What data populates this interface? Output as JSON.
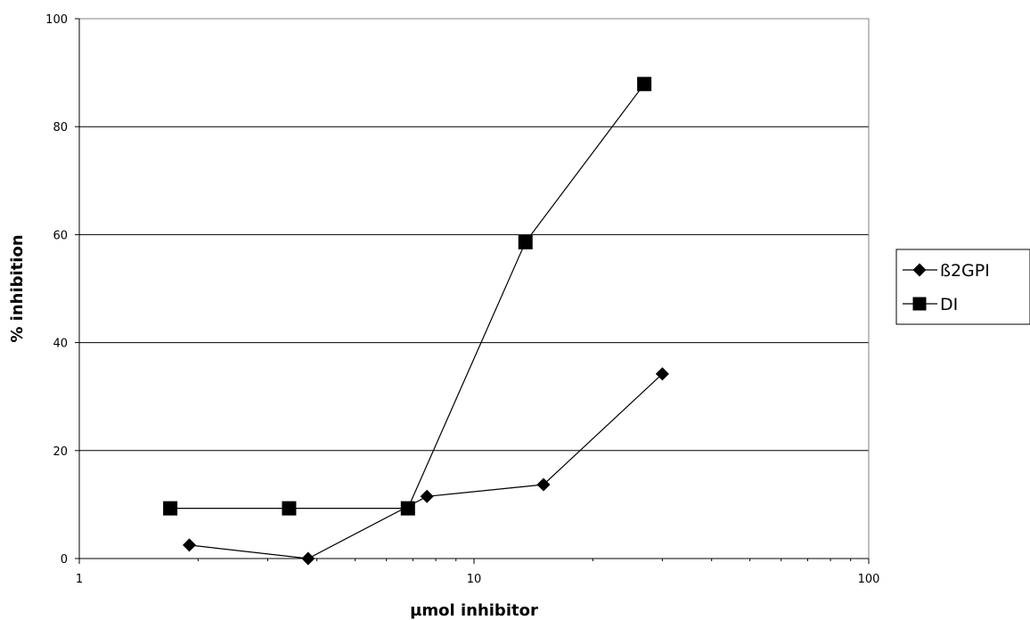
{
  "chart_data": {
    "type": "line",
    "title": "",
    "xlabel": "µmol inhibitor",
    "ylabel": "% inhibition",
    "x_scale": "log",
    "xlim": [
      1,
      100
    ],
    "ylim": [
      0,
      100
    ],
    "x_ticks": [
      1,
      10,
      100
    ],
    "y_ticks": [
      0,
      20,
      40,
      60,
      80,
      100
    ],
    "grid": "horizontal",
    "legend_position": "right",
    "series": [
      {
        "name": "ß2GPI",
        "marker": "diamond",
        "color": "#000000",
        "points": [
          {
            "x": 1.9,
            "y": 2.5
          },
          {
            "x": 3.8,
            "y": 0
          },
          {
            "x": 7.6,
            "y": 11.5
          },
          {
            "x": 15,
            "y": 13.7
          },
          {
            "x": 30,
            "y": 34.2
          }
        ]
      },
      {
        "name": "DI",
        "marker": "square",
        "color": "#000000",
        "points": [
          {
            "x": 1.7,
            "y": 9.3
          },
          {
            "x": 3.4,
            "y": 9.3
          },
          {
            "x": 6.8,
            "y": 9.3
          },
          {
            "x": 13.5,
            "y": 58.6
          },
          {
            "x": 27,
            "y": 87.9
          }
        ]
      }
    ]
  }
}
